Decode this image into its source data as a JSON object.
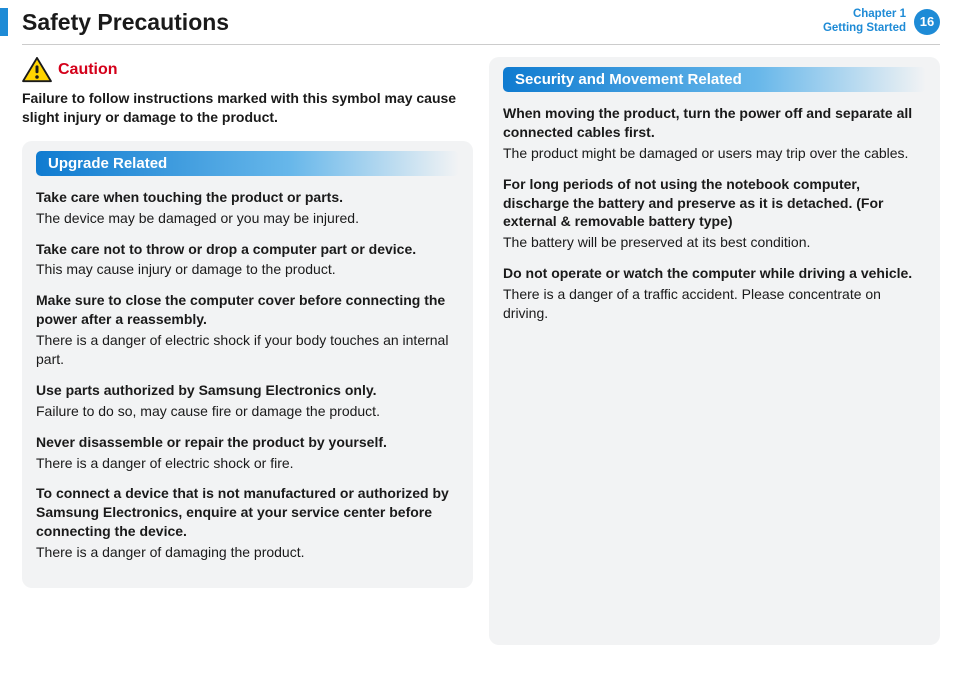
{
  "header": {
    "title": "Safety Precautions",
    "chapter_line1": "Chapter 1",
    "chapter_line2": "Getting Started",
    "page_num": "16",
    "colors": {
      "accent": "#1e8bd6",
      "caution": "#d4001a",
      "card_bg": "#f2f3f4",
      "heading_grad_start": "#0f7bd0",
      "heading_grad_mid": "#67b7ea",
      "underline": "#cccccc",
      "icon_yellow": "#ffd400",
      "icon_black": "#1a1a1a"
    }
  },
  "caution": {
    "label": "Caution",
    "desc": "Failure to follow instructions marked with this symbol may cause slight injury or damage to the product."
  },
  "left_section": {
    "heading": "Upgrade Related",
    "items": [
      {
        "bold": "Take care when touching the product or parts.",
        "body": "The device may be damaged or you may be injured."
      },
      {
        "bold": "Take care not to throw or drop a computer part or device.",
        "body": "This may cause injury or damage to the product."
      },
      {
        "bold": "Make sure to close the computer cover before connecting the power after a reassembly.",
        "body": "There is a danger of electric shock if your body touches an internal part."
      },
      {
        "bold": "Use parts authorized by Samsung Electronics only.",
        "body": "Failure to do so, may cause fire or damage the product."
      },
      {
        "bold": "Never disassemble or repair the product by yourself.",
        "body": "There is a danger of electric shock or fire."
      },
      {
        "bold": "To connect a device that is not manufactured or authorized by Samsung Electronics, enquire at your service center before connecting the device.",
        "body": "There is a danger of damaging the product."
      }
    ]
  },
  "right_section": {
    "heading": "Security and Movement Related",
    "items": [
      {
        "bold": "When moving the product, turn the power off and separate all connected cables first.",
        "body": "The product might be damaged or users may trip over the cables."
      },
      {
        "bold": "For long periods of not using the notebook computer, discharge the battery and preserve as it is detached. (For external & removable battery type)",
        "body": "The battery will be preserved at its best condition."
      },
      {
        "bold": "Do not operate or watch the computer while driving a vehicle.",
        "body": "There is a danger of a traffic accident. Please concentrate on driving."
      }
    ]
  }
}
